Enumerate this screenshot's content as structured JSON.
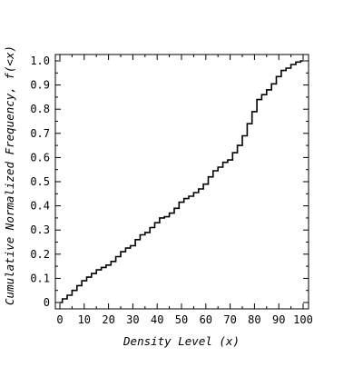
{
  "chart_data": {
    "type": "line",
    "title": "",
    "xlabel": "Density Level (x)",
    "ylabel": "Cumulative Normalized Frequency, f(<x)",
    "xlim": [
      0,
      100
    ],
    "ylim": [
      0,
      1.0
    ],
    "xticks": [
      "0",
      "10",
      "20",
      "30",
      "40",
      "50",
      "60",
      "70",
      "80",
      "90",
      "100"
    ],
    "yticks": [
      "0",
      "0.1",
      "0.2",
      "0.3",
      "0.4",
      "0.5",
      "0.6",
      "0.7",
      "0.8",
      "0.9",
      "1.0"
    ],
    "grid": false,
    "series": [
      {
        "line_color": "#000000",
        "points": [
          [
            0,
            0.0
          ],
          [
            2,
            0.015
          ],
          [
            4,
            0.03
          ],
          [
            6,
            0.05
          ],
          [
            8,
            0.07
          ],
          [
            10,
            0.09
          ],
          [
            12,
            0.105
          ],
          [
            14,
            0.12
          ],
          [
            16,
            0.135
          ],
          [
            18,
            0.145
          ],
          [
            20,
            0.155
          ],
          [
            22,
            0.17
          ],
          [
            24,
            0.19
          ],
          [
            26,
            0.21
          ],
          [
            28,
            0.225
          ],
          [
            30,
            0.235
          ],
          [
            32,
            0.26
          ],
          [
            34,
            0.28
          ],
          [
            36,
            0.29
          ],
          [
            38,
            0.31
          ],
          [
            40,
            0.33
          ],
          [
            42,
            0.35
          ],
          [
            44,
            0.355
          ],
          [
            46,
            0.37
          ],
          [
            48,
            0.39
          ],
          [
            50,
            0.415
          ],
          [
            52,
            0.43
          ],
          [
            54,
            0.44
          ],
          [
            56,
            0.455
          ],
          [
            58,
            0.47
          ],
          [
            60,
            0.49
          ],
          [
            62,
            0.52
          ],
          [
            64,
            0.545
          ],
          [
            66,
            0.56
          ],
          [
            68,
            0.58
          ],
          [
            70,
            0.59
          ],
          [
            72,
            0.62
          ],
          [
            74,
            0.65
          ],
          [
            76,
            0.69
          ],
          [
            78,
            0.74
          ],
          [
            80,
            0.79
          ],
          [
            82,
            0.84
          ],
          [
            84,
            0.86
          ],
          [
            86,
            0.88
          ],
          [
            88,
            0.905
          ],
          [
            90,
            0.935
          ],
          [
            92,
            0.96
          ],
          [
            94,
            0.97
          ],
          [
            96,
            0.985
          ],
          [
            98,
            0.995
          ],
          [
            100,
            1.0
          ]
        ]
      }
    ]
  }
}
